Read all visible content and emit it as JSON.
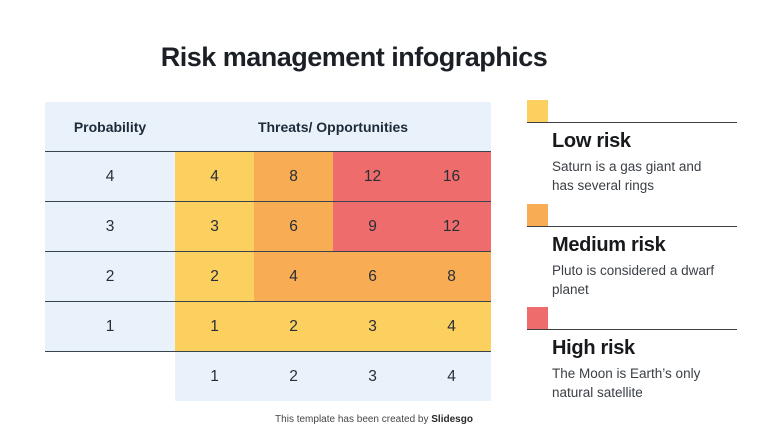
{
  "title": "Risk management infographics",
  "colors": {
    "low": "#fbd05f",
    "medium": "#f8ad55",
    "high": "#ef6c6c",
    "base": "#e9f2fa"
  },
  "matrix": {
    "header": {
      "probability": "Probability",
      "threats": "Threats/ Opportunities"
    },
    "rows": [
      {
        "probability": "4",
        "cells": [
          {
            "value": "4",
            "level": "low"
          },
          {
            "value": "8",
            "level": "medium"
          },
          {
            "value": "12",
            "level": "high"
          },
          {
            "value": "16",
            "level": "high"
          }
        ]
      },
      {
        "probability": "3",
        "cells": [
          {
            "value": "3",
            "level": "low"
          },
          {
            "value": "6",
            "level": "medium"
          },
          {
            "value": "9",
            "level": "high"
          },
          {
            "value": "12",
            "level": "high"
          }
        ]
      },
      {
        "probability": "2",
        "cells": [
          {
            "value": "2",
            "level": "low"
          },
          {
            "value": "4",
            "level": "medium"
          },
          {
            "value": "6",
            "level": "medium"
          },
          {
            "value": "8",
            "level": "medium"
          }
        ]
      },
      {
        "probability": "1",
        "cells": [
          {
            "value": "1",
            "level": "low"
          },
          {
            "value": "2",
            "level": "low"
          },
          {
            "value": "3",
            "level": "low"
          },
          {
            "value": "4",
            "level": "low"
          }
        ]
      }
    ],
    "impact_row": [
      "1",
      "2",
      "3",
      "4"
    ]
  },
  "legend": {
    "items": [
      {
        "label": "Low risk",
        "level": "low",
        "desc_line1": "Saturn is a gas giant and",
        "desc_line2": "has several rings"
      },
      {
        "label": "Medium risk",
        "level": "medium",
        "desc_line1": "Pluto is considered a dwarf",
        "desc_line2": "planet"
      },
      {
        "label": "High risk",
        "level": "high",
        "desc_line1": "The Moon is Earth’s only",
        "desc_line2": "natural satellite"
      }
    ]
  },
  "footer": {
    "text": "This template has been created by",
    "brand": "Slidesgo"
  }
}
